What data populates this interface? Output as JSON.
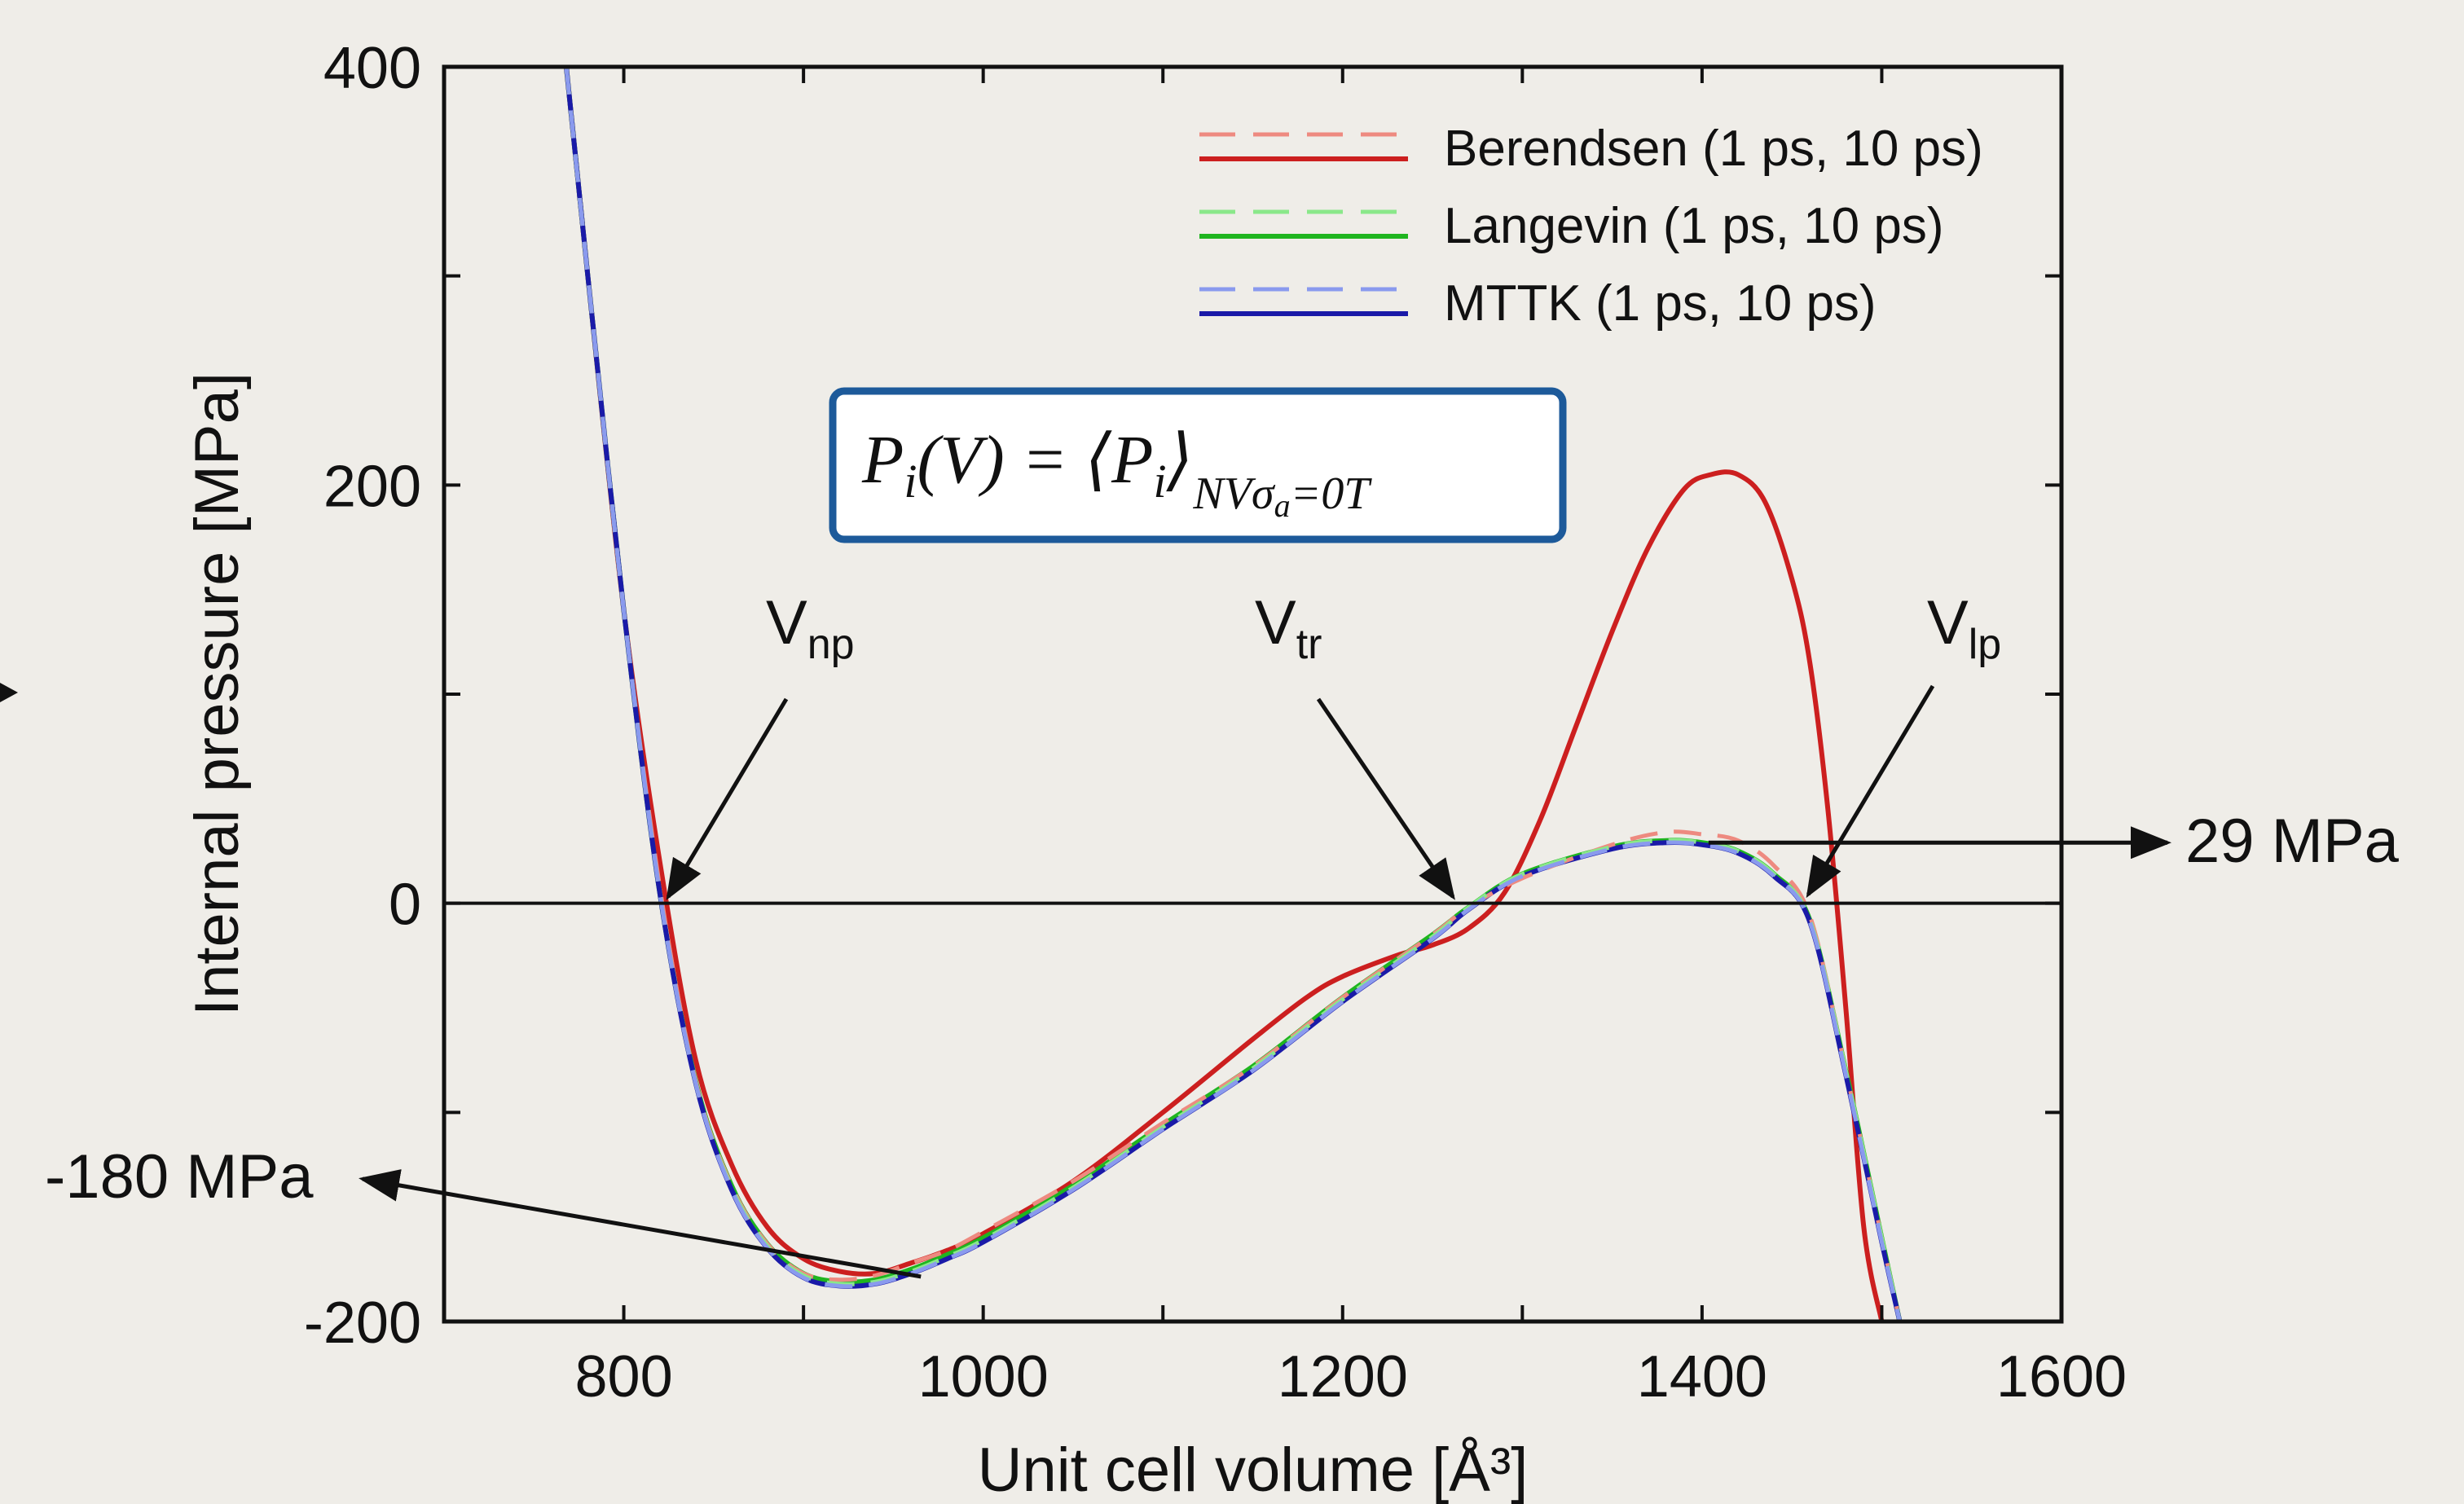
{
  "chart_data": {
    "type": "line",
    "xlabel": "Unit cell volume [Å³]",
    "ylabel": "Internal pressure [MPa]",
    "xlim": [
      700,
      1600
    ],
    "ylim": [
      -200,
      400
    ],
    "xticks": [
      800,
      1000,
      1200,
      1400,
      1600
    ],
    "yticks": [
      -200,
      0,
      200,
      400
    ],
    "grid": false,
    "legend_position": "top-right",
    "legend": [
      {
        "label": "Berendsen (1 ps, 10 ps)",
        "color": "#cc1f1f",
        "light_color": "#ee8a80"
      },
      {
        "label": "Langevin (1 ps, 10 ps)",
        "color": "#1fb51f",
        "light_color": "#8ae88a"
      },
      {
        "label": "MTTK (1 ps, 10 ps)",
        "color": "#1a1aa8",
        "light_color": "#8a9aee"
      }
    ],
    "series": [
      {
        "name": "Berendsen (1 ps, 10 ps)",
        "style": "solid",
        "color": "#cc1f1f",
        "x": [
          768,
          780,
          800,
          820,
          840,
          860,
          880,
          900,
          920,
          940,
          960,
          980,
          1000,
          1050,
          1100,
          1150,
          1180,
          1200,
          1230,
          1250,
          1270,
          1290,
          1310,
          1330,
          1350,
          1370,
          1390,
          1405,
          1420,
          1435,
          1450,
          1460,
          1470,
          1480,
          1490,
          1500
        ],
        "y": [
          400,
          300,
          140,
          20,
          -75,
          -125,
          -155,
          -170,
          -176,
          -177,
          -172,
          -166,
          -158,
          -133,
          -100,
          -65,
          -45,
          -35,
          -25,
          -20,
          -12,
          5,
          40,
          85,
          130,
          170,
          198,
          205,
          205,
          192,
          155,
          115,
          45,
          -50,
          -155,
          -200
        ]
      },
      {
        "name": "Berendsen (1 ps, 10 ps)",
        "style": "dashed",
        "color": "#ee8a80",
        "x": [
          768,
          780,
          800,
          820,
          840,
          860,
          880,
          900,
          920,
          940,
          960,
          980,
          1000,
          1050,
          1100,
          1150,
          1200,
          1250,
          1270,
          1300,
          1350,
          1380,
          1400,
          1420,
          1440,
          1460,
          1480,
          1500,
          1510
        ],
        "y": [
          400,
          300,
          140,
          8,
          -85,
          -135,
          -163,
          -177,
          -180,
          -178,
          -172,
          -166,
          -157,
          -133,
          -105,
          -78,
          -45,
          -15,
          -2,
          12,
          28,
          34,
          33,
          30,
          18,
          -6,
          -80,
          -160,
          -200
        ]
      },
      {
        "name": "Langevin (1 ps, 10 ps)",
        "style": "solid",
        "color": "#1fb51f",
        "x": [
          768,
          780,
          800,
          820,
          840,
          860,
          880,
          900,
          920,
          940,
          960,
          980,
          1000,
          1050,
          1100,
          1150,
          1200,
          1250,
          1270,
          1300,
          1350,
          1380,
          1400,
          1420,
          1440,
          1460,
          1480,
          1500,
          1510
        ],
        "y": [
          400,
          300,
          140,
          5,
          -85,
          -135,
          -163,
          -177,
          -181,
          -180,
          -175,
          -168,
          -160,
          -135,
          -106,
          -78,
          -45,
          -15,
          -2,
          14,
          27,
          30,
          29,
          25,
          14,
          -8,
          -80,
          -160,
          -200
        ]
      },
      {
        "name": "Langevin (1 ps, 10 ps)",
        "style": "dashed",
        "color": "#8ae88a",
        "x": [
          768,
          780,
          800,
          820,
          840,
          860,
          880,
          900,
          920,
          940,
          960,
          980,
          1000,
          1050,
          1100,
          1150,
          1200,
          1250,
          1270,
          1300,
          1350,
          1380,
          1400,
          1420,
          1440,
          1460,
          1480,
          1500,
          1510
        ],
        "y": [
          400,
          300,
          140,
          5,
          -86,
          -136,
          -164,
          -178,
          -182,
          -181,
          -176,
          -169,
          -161,
          -136,
          -107,
          -79,
          -46,
          -16,
          -2,
          14,
          27,
          30,
          29,
          25,
          14,
          -8,
          -80,
          -160,
          -200
        ]
      },
      {
        "name": "MTTK (1 ps, 10 ps)",
        "style": "solid",
        "color": "#1a1aa8",
        "x": [
          768,
          780,
          800,
          820,
          840,
          860,
          880,
          900,
          920,
          940,
          960,
          980,
          1000,
          1050,
          1100,
          1150,
          1200,
          1250,
          1270,
          1300,
          1350,
          1380,
          1400,
          1420,
          1440,
          1460,
          1480,
          1500,
          1510
        ],
        "y": [
          400,
          300,
          140,
          5,
          -86,
          -137,
          -165,
          -179,
          -183,
          -182,
          -177,
          -170,
          -162,
          -137,
          -108,
          -80,
          -47,
          -17,
          -3,
          13,
          26,
          29,
          28,
          24,
          13,
          -9,
          -82,
          -162,
          -200
        ]
      },
      {
        "name": "MTTK (1 ps, 10 ps)",
        "style": "dashed",
        "color": "#8a9aee",
        "x": [
          768,
          780,
          800,
          820,
          840,
          860,
          880,
          900,
          920,
          940,
          960,
          980,
          1000,
          1050,
          1100,
          1150,
          1200,
          1250,
          1270,
          1300,
          1350,
          1380,
          1400,
          1420,
          1440,
          1460,
          1480,
          1500,
          1510
        ],
        "y": [
          400,
          300,
          140,
          5,
          -86,
          -137,
          -165,
          -179,
          -183,
          -182,
          -177,
          -170,
          -162,
          -137,
          -108,
          -80,
          -47,
          -17,
          -3,
          13,
          26,
          29,
          28,
          24,
          13,
          -9,
          -82,
          -162,
          -200
        ]
      }
    ],
    "annotations": [
      {
        "id": "vnp",
        "base": "V",
        "sub": "np",
        "x": 822,
        "y": 0
      },
      {
        "id": "vtr",
        "base": "V",
        "sub": "tr",
        "x": 1265,
        "y": 0
      },
      {
        "id": "vlp",
        "base": "V",
        "sub": "lp",
        "x": 1460,
        "y": 5
      },
      {
        "id": "p29",
        "text": "29 MPa",
        "x": 1390,
        "y": 29
      },
      {
        "id": "p180",
        "text": "-180 MPa",
        "x": 920,
        "y": -177
      }
    ],
    "formula": {
      "lhs": "P",
      "lhs_sub": "i",
      "arg": "(V) = ⟨P",
      "inner_sub": "i",
      "close": "⟩",
      "subscript": "NVσ",
      "subscript_sub": "a",
      "subscript_tail": "=0T"
    }
  }
}
